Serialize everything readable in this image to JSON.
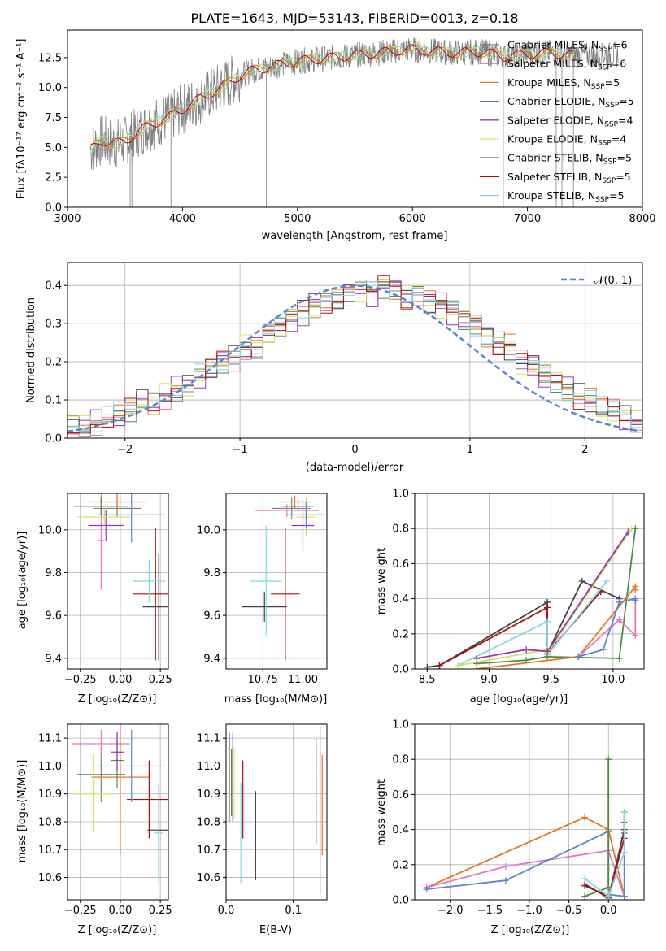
{
  "colors": {
    "chabrier_miles": "#7f7f7f",
    "salpeter_miles": "#e377c2",
    "kroupa_miles": "#e6761f",
    "chabrier_elodie": "#4e8a4e",
    "salpeter_elodie": "#9b30c0",
    "kroupa_elodie": "#d4e65a",
    "chabrier_stelib": "#444444",
    "salpeter_stelib": "#a81010",
    "kroupa_stelib": "#7fd8e0",
    "gauss": "#5b84d1",
    "blue_alt": "#5b84d1"
  },
  "chart_data": [
    {
      "id": "spectrum",
      "type": "line",
      "title": "PLATE=1643, MJD=53143, FIBERID=0013, z=0.18",
      "xlabel": "wavelength [Angstrom, rest frame]",
      "ylabel": "Flux [fλ10⁻¹⁷ erg cm⁻² s⁻¹ A⁻¹]",
      "xlim": [
        3000,
        8000
      ],
      "ylim": [
        0,
        14.8
      ],
      "xticks": [
        "3000",
        "4000",
        "5000",
        "6000",
        "7000",
        "8000"
      ],
      "yticks": [
        "0.0",
        "2.5",
        "5.0",
        "7.5",
        "10.0",
        "12.5"
      ],
      "legend_position": "right",
      "legend": [
        {
          "label": "Chabrier MILES, N",
          "sub": "SSP",
          "n": "=6"
        },
        {
          "label": "Salpeter MILES, N",
          "sub": "SSP",
          "n": "=6"
        },
        {
          "label": "Kroupa MILES, N",
          "sub": "SSP",
          "n": "=5"
        },
        {
          "label": "Chabrier ELODIE, N",
          "sub": "SSP",
          "n": "=5"
        },
        {
          "label": "Salpeter ELODIE, N",
          "sub": "SSP",
          "n": "=4"
        },
        {
          "label": "Kroupa ELODIE, N",
          "sub": "SSP",
          "n": "=4"
        },
        {
          "label": "Chabrier STELIB, N",
          "sub": "SSP",
          "n": "=5"
        },
        {
          "label": "Salpeter STELIB, N",
          "sub": "SSP",
          "n": "=5"
        },
        {
          "label": "Kroupa STELIB, N",
          "sub": "SSP",
          "n": "=5"
        }
      ],
      "model_continuum": {
        "x": [
          3200,
          3300,
          3400,
          3500,
          3600,
          3700,
          3800,
          3900,
          4000,
          4100,
          4200,
          4300,
          4400,
          4500,
          4600,
          4700,
          4800,
          4900,
          5000,
          5200,
          5400,
          5600,
          5800,
          6000,
          6200,
          6400,
          6600,
          6800,
          7000,
          7200,
          7400
        ],
        "y": [
          4.8,
          5.6,
          5.3,
          5.5,
          6.2,
          6.8,
          7.2,
          7.6,
          8.2,
          8.8,
          9.3,
          9.8,
          10.4,
          11.0,
          11.4,
          11.6,
          11.8,
          12.0,
          12.2,
          12.4,
          12.6,
          12.8,
          13.0,
          13.2,
          13.0,
          12.9,
          13.0,
          12.6,
          12.8,
          12.9,
          12.7
        ]
      }
    },
    {
      "id": "residuals",
      "type": "histogram",
      "xlabel": "(data-model)/error",
      "ylabel": "Normed distribution",
      "xlim": [
        -2.5,
        2.5
      ],
      "ylim": [
        0,
        0.46
      ],
      "xticks": [
        "−2",
        "−1",
        "0",
        "1",
        "2"
      ],
      "yticks": [
        "0.0",
        "0.1",
        "0.2",
        "0.3",
        "0.4"
      ],
      "legend": "𝒩(0, 1)",
      "bin_width": 0.1,
      "mean_heights": [
        0.02,
        0.03,
        0.03,
        0.04,
        0.05,
        0.06,
        0.07,
        0.1,
        0.09,
        0.11,
        0.13,
        0.14,
        0.16,
        0.18,
        0.2,
        0.21,
        0.24,
        0.24,
        0.28,
        0.29,
        0.31,
        0.33,
        0.35,
        0.36,
        0.37,
        0.38,
        0.39,
        0.38,
        0.4,
        0.39,
        0.37,
        0.38,
        0.36,
        0.35,
        0.33,
        0.31,
        0.3,
        0.27,
        0.25,
        0.24,
        0.2,
        0.19,
        0.16,
        0.15,
        0.13,
        0.11,
        0.1,
        0.08,
        0.07,
        0.05,
        0.04,
        0.03
      ]
    },
    {
      "id": "age-vs-Z",
      "type": "errorbar",
      "xlabel": "Z [log₁₀(Z/Z⊙)]",
      "ylabel": "age  [log₁₀(age/yr)]",
      "xlim": [
        -0.33,
        0.3
      ],
      "ylim": [
        9.35,
        10.17
      ],
      "xticks": [
        "−0.25",
        "0.00",
        "0.25"
      ],
      "yticks": [
        "9.4",
        "9.6",
        "9.8",
        "10.0"
      ],
      "points": [
        {
          "series": "chabrier_miles",
          "x": -0.02,
          "xerr": 0.15,
          "y": 10.1,
          "yerr": 0.04
        },
        {
          "series": "salpeter_miles",
          "x": -0.12,
          "xerr": 0.02,
          "y": 9.95,
          "yerr": 0.23
        },
        {
          "series": "kroupa_miles",
          "x": -0.02,
          "xerr": 0.18,
          "y": 10.13,
          "yerr": 0.04
        },
        {
          "series": "chabrier_elodie",
          "x": -0.12,
          "xerr": 0.17,
          "y": 10.11,
          "yerr": 0.04
        },
        {
          "series": "salpeter_elodie",
          "x": -0.09,
          "xerr": 0.11,
          "y": 10.02,
          "yerr": 0.07
        },
        {
          "series": "kroupa_elodie",
          "x": -0.1,
          "xerr": 0.17,
          "y": 10.06,
          "yerr": 0.04
        },
        {
          "series": "chabrier_stelib",
          "x": 0.24,
          "xerr": 0.1,
          "y": 9.64,
          "yerr": 0.25
        },
        {
          "series": "salpeter_stelib",
          "x": 0.22,
          "xerr": 0.14,
          "y": 9.7,
          "yerr": 0.31
        },
        {
          "series": "kroupa_stelib",
          "x": 0.18,
          "xerr": 0.1,
          "y": 9.76,
          "yerr": 0.1
        },
        {
          "series": "blue_alt",
          "x": 0.07,
          "xerr": 0.21,
          "y": 10.07,
          "yerr": 0.13
        }
      ]
    },
    {
      "id": "age-vs-mass",
      "type": "errorbar",
      "xlabel": "mass [log₁₀(M/M⊙)]",
      "xlim": [
        10.52,
        11.15
      ],
      "ylim": [
        9.35,
        10.17
      ],
      "xticks": [
        "10.75",
        "11.00"
      ],
      "yticks": [
        "9.4",
        "9.6",
        "9.8",
        "10.0"
      ],
      "points": [
        {
          "series": "chabrier_miles",
          "x": 10.93,
          "xerr": 0.12,
          "y": 10.1,
          "yerr": 0.05
        },
        {
          "series": "salpeter_miles",
          "x": 10.9,
          "xerr": 0.2,
          "y": 10.09,
          "yerr": 0.03
        },
        {
          "series": "kroupa_miles",
          "x": 10.95,
          "xerr": 0.1,
          "y": 10.13,
          "yerr": 0.03
        },
        {
          "series": "chabrier_elodie",
          "x": 10.97,
          "xerr": 0.1,
          "y": 10.11,
          "yerr": 0.03
        },
        {
          "series": "salpeter_elodie",
          "x": 11.0,
          "xerr": 0.07,
          "y": 10.02,
          "yerr": 0.12
        },
        {
          "series": "kroupa_elodie",
          "x": 11.02,
          "xerr": 0.06,
          "y": 10.06,
          "yerr": 0.09
        },
        {
          "series": "chabrier_stelib",
          "x": 10.76,
          "xerr": 0.14,
          "y": 9.64,
          "yerr": 0.07
        },
        {
          "series": "salpeter_stelib",
          "x": 10.89,
          "xerr": 0.09,
          "y": 9.7,
          "yerr": 0.31
        },
        {
          "series": "kroupa_stelib",
          "x": 10.77,
          "xerr": 0.1,
          "y": 9.76,
          "yerr": 0.26
        },
        {
          "series": "blue_alt",
          "x": 11.02,
          "xerr": 0.12,
          "y": 10.07,
          "yerr": 0.06
        }
      ]
    },
    {
      "id": "weight-vs-age",
      "type": "line",
      "xlabel": "age  [log₁₀(age/yr)]",
      "ylabel": "mass weight",
      "xlim": [
        8.4,
        10.25
      ],
      "ylim": [
        0,
        1.0
      ],
      "xticks": [
        "8.5",
        "9.0",
        "9.5",
        "10.0"
      ],
      "yticks": [
        "0.0",
        "0.2",
        "0.4",
        "0.6",
        "0.8",
        "1.0"
      ],
      "series": [
        {
          "series": "chabrier_stelib",
          "x": [
            8.5,
            8.6,
            9.47,
            9.47,
            9.75,
            10.05
          ],
          "y": [
            0.01,
            0.02,
            0.38,
            0.09,
            0.5,
            0.4
          ]
        },
        {
          "series": "salpeter_stelib",
          "x": [
            8.6,
            9.47,
            9.47,
            9.9
          ],
          "y": [
            0.02,
            0.35,
            0.09,
            0.44
          ]
        },
        {
          "series": "kroupa_stelib",
          "x": [
            8.75,
            9.47,
            9.47,
            9.95
          ],
          "y": [
            0.02,
            0.27,
            0.08,
            0.5
          ]
        },
        {
          "series": "kroupa_elodie",
          "x": [
            8.75,
            9.47,
            9.47,
            10.15
          ],
          "y": [
            0.02,
            0.11,
            0.09,
            0.8
          ]
        },
        {
          "series": "salpeter_elodie",
          "x": [
            8.9,
            9.3,
            9.47,
            10.12
          ],
          "y": [
            0.06,
            0.11,
            0.1,
            0.78
          ]
        },
        {
          "series": "chabrier_elodie",
          "x": [
            8.9,
            9.3,
            9.47,
            10.05,
            10.18
          ],
          "y": [
            0.03,
            0.05,
            0.07,
            0.06,
            0.8
          ]
        },
        {
          "series": "kroupa_miles",
          "x": [
            8.9,
            9.72,
            10.18,
            10.18
          ],
          "y": [
            0.0,
            0.07,
            0.47,
            0.45
          ]
        },
        {
          "series": "salpeter_miles",
          "x": [
            9.72,
            10.05,
            10.18,
            10.18
          ],
          "y": [
            0.07,
            0.28,
            0.19,
            0.4
          ]
        },
        {
          "series": "blue_alt",
          "x": [
            9.72,
            9.92,
            10.05,
            10.18,
            10.18
          ],
          "y": [
            0.07,
            0.11,
            0.38,
            0.4,
            0.39
          ]
        }
      ]
    },
    {
      "id": "mass-vs-Z",
      "type": "errorbar",
      "xlabel": "Z [log₁₀(Z/Z⊙)]",
      "ylabel": "mass [log₁₀(M/M⊙)]",
      "xlim": [
        -0.33,
        0.3
      ],
      "ylim": [
        10.52,
        11.15
      ],
      "xticks": [
        "−0.25",
        "0.00",
        "0.25"
      ],
      "yticks": [
        "10.6",
        "10.7",
        "10.8",
        "10.9",
        "11.0",
        "11.1"
      ],
      "points": [
        {
          "series": "chabrier_miles",
          "x": -0.12,
          "xerr": 0.15,
          "y": 10.97,
          "yerr": 0.1
        },
        {
          "series": "salpeter_miles",
          "x": -0.12,
          "xerr": 0.18,
          "y": 11.08,
          "yerr": 0.05
        },
        {
          "series": "kroupa_miles",
          "x": 0.0,
          "xerr": 0.18,
          "y": 10.96,
          "yerr": 0.28
        },
        {
          "series": "chabrier_elodie",
          "x": -0.02,
          "xerr": 0.04,
          "y": 11.02,
          "yerr": 0.1
        },
        {
          "series": "salpeter_elodie",
          "x": -0.02,
          "xerr": 0.04,
          "y": 11.05,
          "yerr": 0.07
        },
        {
          "series": "kroupa_elodie",
          "x": -0.17,
          "xerr": 0.13,
          "y": 10.9,
          "yerr": 0.14
        },
        {
          "series": "chabrier_stelib",
          "x": 0.24,
          "xerr": 0.07,
          "y": 10.77,
          "yerr": 0.16
        },
        {
          "series": "salpeter_stelib",
          "x": 0.18,
          "xerr": 0.14,
          "y": 10.88,
          "yerr": 0.14
        },
        {
          "series": "kroupa_stelib",
          "x": 0.24,
          "xerr": 0.03,
          "y": 10.76,
          "yerr": 0.18
        },
        {
          "series": "blue_alt",
          "x": 0.07,
          "xerr": 0.21,
          "y": 11.0,
          "yerr": 0.13
        }
      ]
    },
    {
      "id": "mass-vs-ebv",
      "type": "errorbar",
      "xlabel": "E(B-V)",
      "xlim": [
        0,
        0.15
      ],
      "ylim": [
        10.52,
        11.15
      ],
      "xticks": [
        "0.0",
        "0.1"
      ],
      "yticks": [
        "10.6",
        "10.7",
        "10.8",
        "10.9",
        "11.0",
        "11.1"
      ],
      "points": [
        {
          "series": "chabrier_miles",
          "x": 0.005,
          "xerr": 0.0,
          "y": 10.96,
          "yerr": 0.16
        },
        {
          "series": "salpeter_miles",
          "x": 0.14,
          "xerr": 0.0,
          "y": 10.84,
          "yerr": 0.3
        },
        {
          "series": "kroupa_miles",
          "x": 0.143,
          "xerr": 0.0,
          "y": 10.86,
          "yerr": 0.18
        },
        {
          "series": "chabrier_elodie",
          "x": 0.008,
          "xerr": 0.0,
          "y": 10.94,
          "yerr": 0.12
        },
        {
          "series": "salpeter_elodie",
          "x": 0.01,
          "xerr": 0.0,
          "y": 10.96,
          "yerr": 0.16
        },
        {
          "series": "kroupa_elodie",
          "x": 0.012,
          "xerr": 0.0,
          "y": 10.94,
          "yerr": 0.13
        },
        {
          "series": "chabrier_stelib",
          "x": 0.044,
          "xerr": 0.0,
          "y": 10.75,
          "yerr": 0.16
        },
        {
          "series": "salpeter_stelib",
          "x": 0.025,
          "xerr": 0.0,
          "y": 10.88,
          "yerr": 0.14
        },
        {
          "series": "kroupa_stelib",
          "x": 0.022,
          "xerr": 0.0,
          "y": 10.76,
          "yerr": 0.18
        },
        {
          "series": "blue_alt",
          "x": 0.134,
          "xerr": 0.0,
          "y": 10.91,
          "yerr": 0.19
        }
      ]
    },
    {
      "id": "weight-vs-Z",
      "type": "line",
      "xlabel": "Z [log₁₀(Z/Z⊙)]",
      "ylabel": "mass weight",
      "xlim": [
        -2.45,
        0.45
      ],
      "ylim": [
        0,
        1.0
      ],
      "xticks": [
        "−2.0",
        "−1.5",
        "−1.0",
        "−0.5",
        "0.0"
      ],
      "yticks": [
        "0.0",
        "0.2",
        "0.4",
        "0.6",
        "0.8",
        "1.0"
      ],
      "series": [
        {
          "series": "kroupa_miles",
          "x": [
            -2.3,
            -0.3,
            0.0,
            0.2
          ],
          "y": [
            0.07,
            0.47,
            0.4,
            0.02
          ]
        },
        {
          "series": "salpeter_miles",
          "x": [
            -2.3,
            -1.3,
            0.0,
            0.2
          ],
          "y": [
            0.07,
            0.19,
            0.28,
            0.02
          ]
        },
        {
          "series": "blue_alt",
          "x": [
            -2.3,
            -1.3,
            0.0,
            0.0,
            0.2,
            0.2
          ],
          "y": [
            0.06,
            0.11,
            0.39,
            0.03,
            0.02,
            0.38
          ]
        },
        {
          "series": "kroupa_elodie",
          "x": [
            0.0,
            0.0,
            0.0
          ],
          "y": [
            0.8,
            0.09,
            0.02
          ]
        },
        {
          "series": "chabrier_elodie",
          "x": [
            -0.3,
            0.0,
            0.0
          ],
          "y": [
            0.02,
            0.07,
            0.8
          ]
        },
        {
          "series": "chabrier_stelib",
          "x": [
            -0.3,
            0.0,
            0.2,
            0.2
          ],
          "y": [
            0.09,
            0.01,
            0.4,
            0.5
          ]
        },
        {
          "series": "salpeter_stelib",
          "x": [
            -0.3,
            0.0,
            0.2,
            0.2
          ],
          "y": [
            0.08,
            0.02,
            0.35,
            0.44
          ]
        },
        {
          "series": "kroupa_stelib",
          "x": [
            -0.3,
            0.0,
            0.2,
            0.2
          ],
          "y": [
            0.12,
            0.02,
            0.27,
            0.5
          ]
        }
      ]
    }
  ]
}
